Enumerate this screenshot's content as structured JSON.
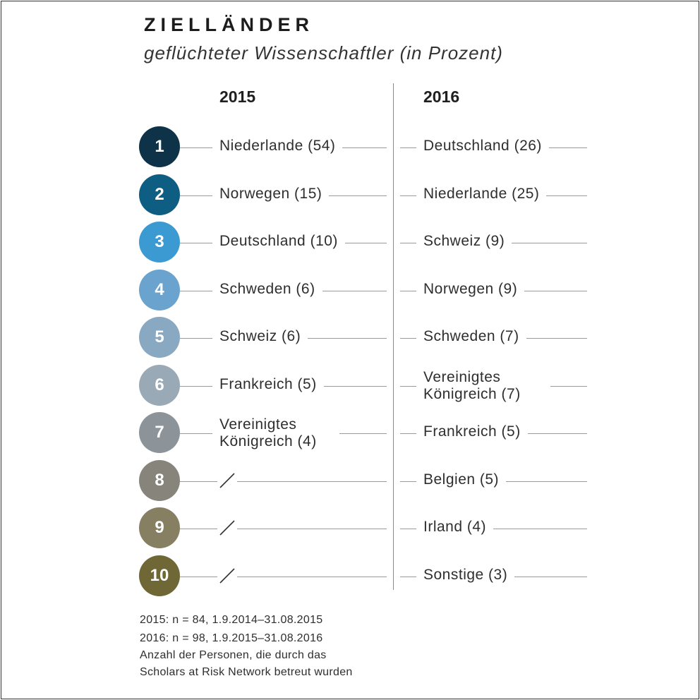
{
  "title": "ZIELLÄNDER",
  "subtitle": "geflüchteter Wissenschaftler (in Prozent)",
  "colors": [
    "#0e3247",
    "#0e5d82",
    "#3c9ad3",
    "#6aa3cd",
    "#89a8c2",
    "#99a9b6",
    "#8d9499",
    "#86847b",
    "#867f62",
    "#6f6735"
  ],
  "chart_data": {
    "type": "table",
    "columns": [
      "2015",
      "2016"
    ],
    "ranks": [
      "1",
      "2",
      "3",
      "4",
      "5",
      "6",
      "7",
      "8",
      "9",
      "10"
    ],
    "rows": [
      {
        "rank": "1",
        "c2015": "Niederlande (54)",
        "c2016": "Deutschland (26)"
      },
      {
        "rank": "2",
        "c2015": "Norwegen (15)",
        "c2016": "Niederlande (25)"
      },
      {
        "rank": "3",
        "c2015": "Deutschland (10)",
        "c2016": "Schweiz (9)"
      },
      {
        "rank": "4",
        "c2015": "Schweden (6)",
        "c2016": "Norwegen (9)"
      },
      {
        "rank": "5",
        "c2015": "Schweiz (6)",
        "c2016": "Schweden (7)"
      },
      {
        "rank": "6",
        "c2015": "Frankreich (5)",
        "c2016": "Vereinigtes Königreich (7)"
      },
      {
        "rank": "7",
        "c2015": "Vereinigtes Königreich (4)",
        "c2016": "Frankreich (5)"
      },
      {
        "rank": "8",
        "c2015": null,
        "c2016": "Belgien (5)"
      },
      {
        "rank": "9",
        "c2015": null,
        "c2016": "Irland (4)"
      },
      {
        "rank": "10",
        "c2015": null,
        "c2016": "Sonstige (3)"
      }
    ]
  },
  "footnotes": [
    "2015: n = 84, 1.9.2014–31.08.2015",
    "2016: n = 98, 1.9.2015–31.08.2016",
    "Anzahl der Personen, die durch das",
    "Scholars at Risk Network betreut wurden"
  ]
}
